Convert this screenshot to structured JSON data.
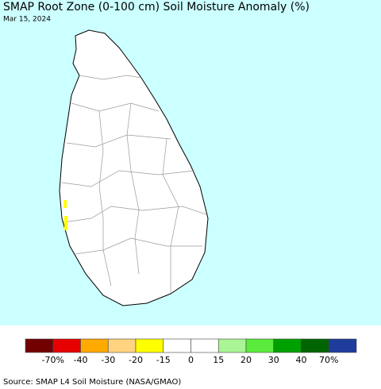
{
  "title": "SMAP Root Zone (0-100 cm) Soil Moisture Anomaly (%)",
  "date": "Mar 15, 2024",
  "legend": {
    "colors": [
      "#730000",
      "#e60000",
      "#ffaa00",
      "#ffd37f",
      "#ffff00",
      "#ffffff",
      "#ffffff",
      "#aaf596",
      "#5aeb3c",
      "#00a000",
      "#006400",
      "#1e3c9b"
    ],
    "labels": [
      "-70%",
      "-40",
      "-30",
      "-20",
      "-15",
      "0",
      "15",
      "20",
      "30",
      "40",
      "70%"
    ]
  },
  "source": "Source: SMAP L4 Soil Moisture (NASA/GMAO)"
}
